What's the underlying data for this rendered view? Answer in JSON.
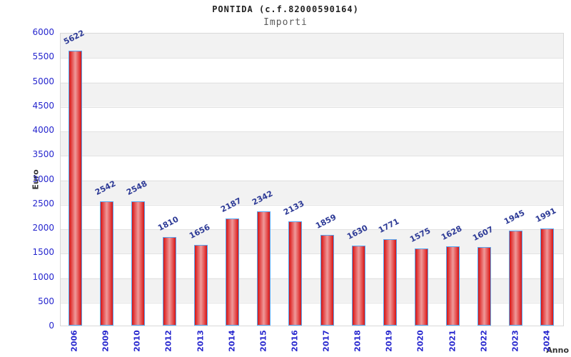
{
  "header": {
    "title": "PONTIDA (c.f.82000590164)",
    "subtitle": "Importi"
  },
  "chart_data": {
    "type": "bar",
    "title": "PONTIDA (c.f.82000590164)",
    "subtitle": "Importi",
    "xlabel": "Anno",
    "ylabel": "Euro",
    "categories": [
      "2006",
      "2009",
      "2010",
      "2012",
      "2013",
      "2014",
      "2015",
      "2016",
      "2017",
      "2018",
      "2019",
      "2020",
      "2021",
      "2022",
      "2023",
      "2024"
    ],
    "values": [
      5622,
      2542,
      2548,
      1810,
      1656,
      2187,
      2342,
      2133,
      1859,
      1630,
      1771,
      1575,
      1628,
      1607,
      1945,
      1991
    ],
    "ylim": [
      0,
      6000
    ],
    "ytick_step": 500,
    "yticks": [
      0,
      500,
      1000,
      1500,
      2000,
      2500,
      3000,
      3500,
      4000,
      4500,
      5000,
      5500,
      6000
    ],
    "grid": "horizontal-bands",
    "legend_position": "none",
    "colors": {
      "bar_edge": "#d31414",
      "bar_center": "#ef9a9a",
      "bar_border": "#58a6f0",
      "tick_label": "#2626ce",
      "value_label": "#2d3a96",
      "band_gray": "#f2f2f2",
      "band_white": "#ffffff",
      "gridline": "#e2e2e2",
      "plot_border": "#d8d8d8",
      "title": "#222222",
      "subtitle": "#5a5a5a",
      "axis_title": "#333333"
    }
  }
}
